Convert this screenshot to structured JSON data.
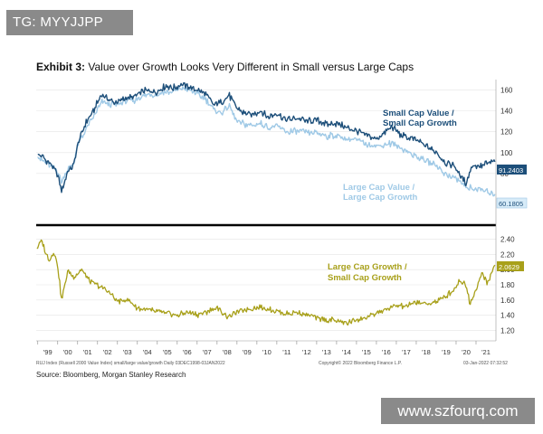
{
  "watermarks": {
    "top": "TG: MYYJJPP",
    "bottom": "www.szfourq.com"
  },
  "title": {
    "prefix": "Exhibit 3:",
    "text": "Value over Growth Looks Very Different in Small versus Large Caps"
  },
  "source": "Source: Bloomberg, Morgan Stanley Research",
  "footer": {
    "left": "RUJ Index (Russell 2000 Value Index) small/large value/growth Daily 03DEC1998-03JAN2022",
    "center": "Copyright© 2022 Bloomberg Finance L.P.",
    "right": "03-Jan-2022 07:32:52"
  },
  "colors": {
    "small_cap": "#1d4f7a",
    "large_cap": "#9fc9e6",
    "growth_ratio": "#a8a01a"
  },
  "chart_data": [
    {
      "type": "line",
      "title": "",
      "ylim": [
        40,
        170
      ],
      "yticks": [
        80,
        100,
        120,
        140,
        160
      ],
      "series": [
        {
          "name": "Small Cap Value / Small Cap Growth",
          "label_lines": [
            "Small Cap Value /",
            "Small Cap Growth"
          ],
          "last_value": "91.2403",
          "x": [
            1999.0,
            1999.3,
            1999.7,
            2000.0,
            2000.2,
            2000.5,
            2000.8,
            2001.0,
            2001.4,
            2001.8,
            2002.2,
            2002.6,
            2003.0,
            2003.4,
            2003.8,
            2004.2,
            2004.6,
            2005.0,
            2005.4,
            2005.8,
            2006.2,
            2006.6,
            2007.0,
            2007.4,
            2007.8,
            2008.2,
            2008.6,
            2009.0,
            2009.4,
            2009.8,
            2010.2,
            2010.6,
            2011.0,
            2011.5,
            2012.0,
            2012.5,
            2013.0,
            2013.5,
            2014.0,
            2014.5,
            2015.0,
            2015.5,
            2016.0,
            2016.4,
            2016.8,
            2017.2,
            2017.6,
            2018.0,
            2018.5,
            2019.0,
            2019.5,
            2019.9,
            2020.2,
            2020.5,
            2020.8,
            2021.2,
            2021.6,
            2021.95
          ],
          "values": [
            98,
            95,
            88,
            78,
            62,
            82,
            88,
            108,
            128,
            140,
            156,
            150,
            148,
            152,
            153,
            158,
            160,
            158,
            164,
            162,
            165,
            163,
            160,
            157,
            146,
            148,
            155,
            142,
            138,
            136,
            140,
            134,
            138,
            131,
            133,
            130,
            131,
            127,
            128,
            124,
            121,
            117,
            113,
            119,
            125,
            117,
            114,
            112,
            106,
            101,
            90,
            88,
            78,
            71,
            88,
            87,
            90,
            91.24
          ]
        },
        {
          "name": "Large Cap Value / Large Cap Growth",
          "label_lines": [
            "Large Cap Value /",
            "Large Cap Growth"
          ],
          "last_value": "60.1805",
          "x": [
            1999.0,
            1999.3,
            1999.7,
            2000.0,
            2000.2,
            2000.5,
            2000.8,
            2001.0,
            2001.4,
            2001.8,
            2002.2,
            2002.6,
            2003.0,
            2003.4,
            2003.8,
            2004.2,
            2004.6,
            2005.0,
            2005.4,
            2005.8,
            2006.2,
            2006.6,
            2007.0,
            2007.4,
            2007.8,
            2008.2,
            2008.6,
            2009.0,
            2009.4,
            2009.8,
            2010.2,
            2010.6,
            2011.0,
            2011.5,
            2012.0,
            2012.5,
            2013.0,
            2013.5,
            2014.0,
            2014.5,
            2015.0,
            2015.5,
            2016.0,
            2016.4,
            2016.8,
            2017.2,
            2017.6,
            2018.0,
            2018.5,
            2019.0,
            2019.5,
            2019.9,
            2020.2,
            2020.5,
            2020.8,
            2021.2,
            2021.6,
            2021.95
          ],
          "values": [
            96,
            92,
            86,
            82,
            72,
            84,
            90,
            106,
            122,
            134,
            148,
            147,
            146,
            150,
            149,
            154,
            156,
            155,
            158,
            158,
            162,
            160,
            156,
            152,
            142,
            138,
            145,
            130,
            127,
            126,
            128,
            124,
            125,
            120,
            121,
            119,
            119,
            116,
            116,
            113,
            112,
            108,
            106,
            108,
            109,
            104,
            101,
            96,
            92,
            88,
            79,
            76,
            72,
            66,
            66,
            64,
            62,
            60.18
          ]
        }
      ]
    },
    {
      "type": "line",
      "title": "",
      "ylim": [
        1.1,
        2.5
      ],
      "yticks": [
        1.2,
        1.4,
        1.6,
        1.8,
        2.0,
        2.2,
        2.4
      ],
      "ytick_labels": [
        "1.20",
        "1.40",
        "1.60",
        "1.80",
        "2.00",
        "2.20",
        "2.40"
      ],
      "xlim": [
        1998.92,
        2022.0
      ],
      "xticks": [
        1999,
        2000,
        2001,
        2002,
        2003,
        2004,
        2005,
        2006,
        2007,
        2008,
        2009,
        2010,
        2011,
        2012,
        2013,
        2014,
        2015,
        2016,
        2017,
        2018,
        2019,
        2020,
        2021
      ],
      "xtick_labels": [
        "'99",
        "'00",
        "'01",
        "'02",
        "'03",
        "'04",
        "'05",
        "'06",
        "'07",
        "'08",
        "'09",
        "'10",
        "'11",
        "'12",
        "'13",
        "'14",
        "'15",
        "'16",
        "'17",
        "'18",
        "'19",
        "'20",
        "'21"
      ],
      "series": [
        {
          "name": "Large Cap Growth / Small Cap Growth",
          "label_lines": [
            "Large Cap Growth /",
            "Small Cap Growth"
          ],
          "last_value": "2.0629",
          "x": [
            1998.95,
            1999.2,
            1999.4,
            1999.6,
            1999.8,
            2000.0,
            2000.2,
            2000.5,
            2000.8,
            2001.2,
            2001.6,
            2002.0,
            2002.5,
            2003.0,
            2003.5,
            2004.0,
            2004.5,
            2005.0,
            2005.5,
            2006.0,
            2006.5,
            2007.0,
            2007.5,
            2008.0,
            2008.5,
            2009.0,
            2009.5,
            2010.0,
            2010.5,
            2011.0,
            2011.5,
            2012.0,
            2012.5,
            2013.0,
            2013.5,
            2014.0,
            2014.5,
            2015.0,
            2015.5,
            2016.0,
            2016.5,
            2017.0,
            2017.5,
            2018.0,
            2018.5,
            2019.0,
            2019.5,
            2019.9,
            2020.2,
            2020.5,
            2020.7,
            2021.0,
            2021.3,
            2021.6,
            2021.95
          ],
          "values": [
            2.28,
            2.38,
            2.22,
            2.12,
            2.24,
            2.05,
            1.6,
            1.98,
            1.9,
            2.0,
            1.84,
            1.8,
            1.72,
            1.58,
            1.6,
            1.5,
            1.47,
            1.45,
            1.42,
            1.4,
            1.44,
            1.41,
            1.45,
            1.5,
            1.38,
            1.44,
            1.48,
            1.51,
            1.49,
            1.45,
            1.42,
            1.44,
            1.41,
            1.37,
            1.34,
            1.33,
            1.3,
            1.34,
            1.37,
            1.43,
            1.48,
            1.52,
            1.52,
            1.57,
            1.55,
            1.58,
            1.65,
            1.75,
            1.86,
            1.8,
            1.55,
            1.74,
            1.95,
            1.82,
            2.06
          ]
        }
      ]
    }
  ]
}
